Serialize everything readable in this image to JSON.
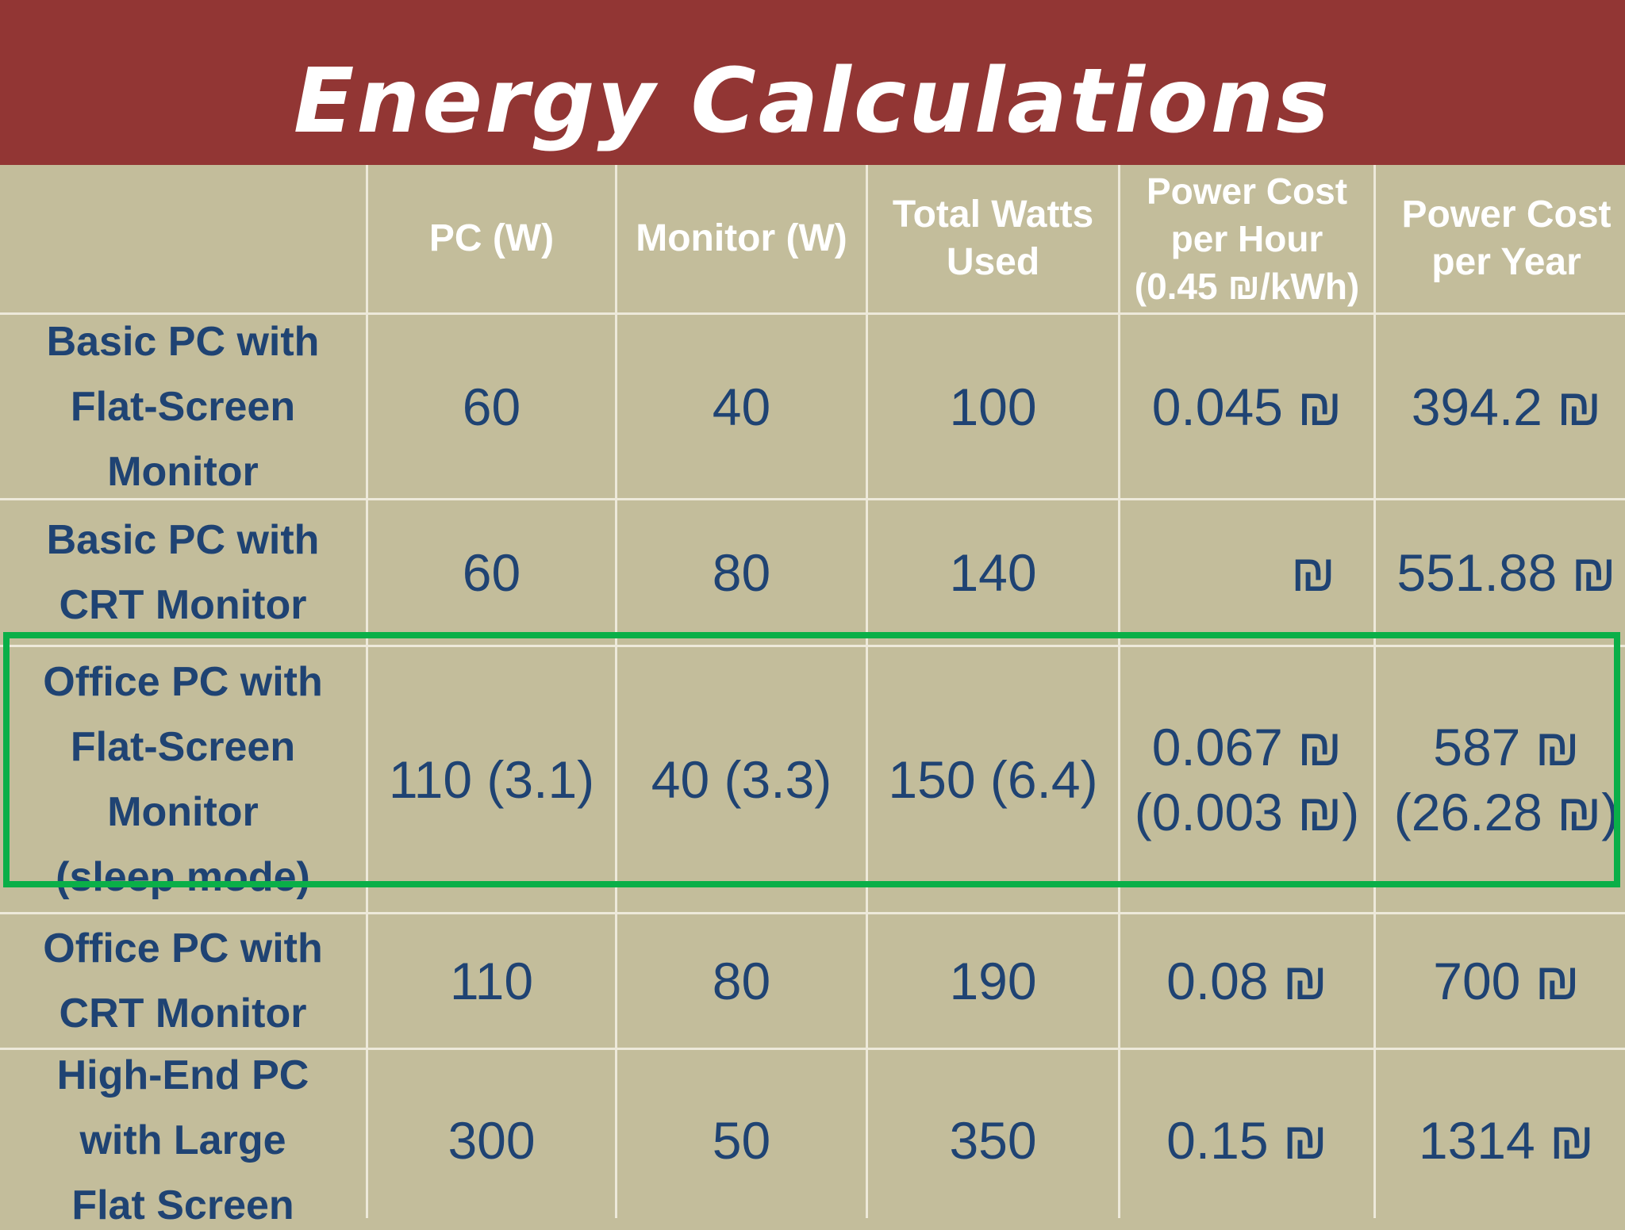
{
  "slide": {
    "title": "Energy Calculations",
    "highlight_color": "#0aaf48",
    "title_band_color": "#923634",
    "text_color": "#1f4373"
  },
  "table": {
    "headers": [
      "",
      "PC (W)",
      "Monitor (W)",
      "Total Watts\nUsed",
      "Power Cost\nper  Hour\n(0.45 ₪/kWh)",
      "Power Cost\nper Year"
    ],
    "rows": [
      {
        "label": "Basic PC with\nFlat-Screen\nMonitor",
        "pc": "60",
        "monitor": "40",
        "total": "100",
        "cost_hour": "0.045 ₪",
        "cost_year": "394.2 ₪"
      },
      {
        "label": "Basic PC with\nCRT Monitor",
        "pc": "60",
        "monitor": "80",
        "total": "140",
        "cost_hour": "₪",
        "cost_year": "551.88 ₪"
      },
      {
        "label": "Office PC with\nFlat-Screen\nMonitor\n(sleep mode)",
        "pc": "110 (3.1)",
        "monitor": "40 (3.3)",
        "total": "150 (6.4)",
        "cost_hour": "0.067  ₪\n(0.003 ₪)",
        "cost_year": "587  ₪\n(26.28 ₪)",
        "highlighted": true
      },
      {
        "label": "Office PC with\nCRT Monitor",
        "pc": "110",
        "monitor": "80",
        "total": "190",
        "cost_hour": "0.08 ₪",
        "cost_year": "700 ₪"
      },
      {
        "label": "High-End PC\nwith Large\nFlat Screen",
        "pc": "300",
        "monitor": "50",
        "total": "350",
        "cost_hour": "0.15 ₪",
        "cost_year": "1314 ₪"
      }
    ]
  }
}
